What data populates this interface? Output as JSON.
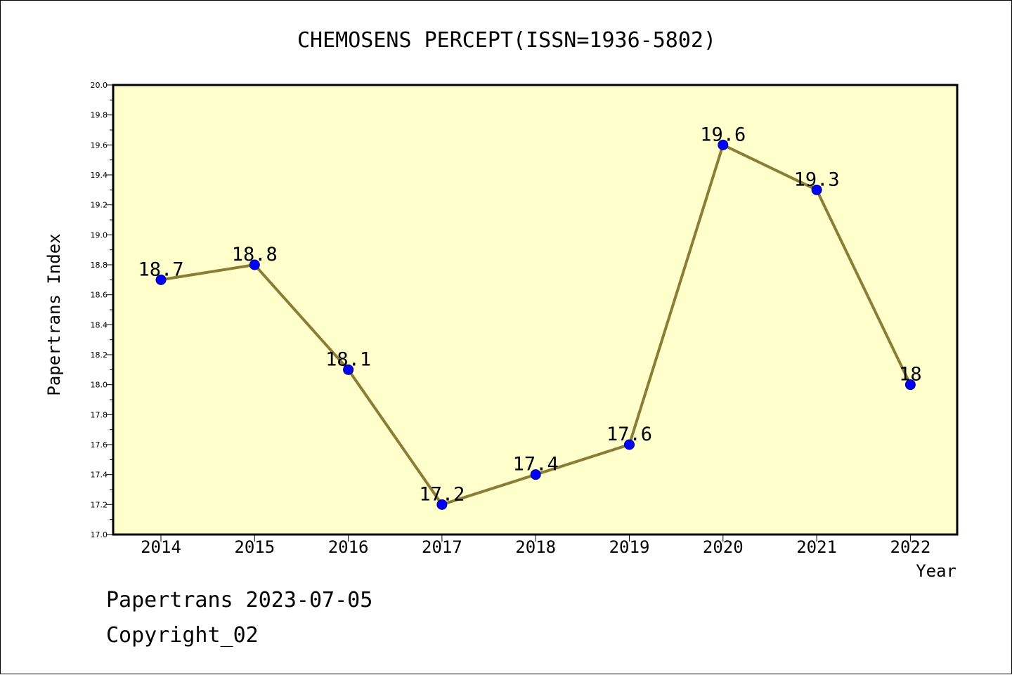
{
  "chart_data": {
    "type": "line",
    "title": "CHEMOSENS PERCEPT(ISSN=1936-5802)",
    "xlabel": "Year",
    "ylabel": "Papertrans Index",
    "categories": [
      "2014",
      "2015",
      "2016",
      "2017",
      "2018",
      "2019",
      "2020",
      "2021",
      "2022"
    ],
    "series": [
      {
        "values": [
          18.7,
          18.8,
          18.1,
          17.2,
          17.4,
          17.6,
          19.6,
          19.3,
          18.0
        ],
        "data_labels": [
          "18.7",
          "18.8",
          "18.1",
          "17.2",
          "17.4",
          "17.6",
          "19.6",
          "19.3",
          "18"
        ]
      }
    ],
    "ylim": [
      17.0,
      20.0
    ],
    "yticks": [
      "17.0",
      "17.2",
      "17.4",
      "17.6",
      "17.8",
      "18.0",
      "18.2",
      "18.4",
      "18.6",
      "18.8",
      "19.0",
      "19.2",
      "19.4",
      "19.6",
      "19.8",
      "20.0"
    ],
    "grid": false,
    "legend": "none",
    "colors": {
      "plot_background": "#ffffcc",
      "line": "#8b7d35",
      "marker": "#0000ff",
      "marker_edge": "#000080"
    }
  },
  "footer": {
    "line1": "Papertrans 2023-07-05",
    "line2": "Copyright_02"
  }
}
